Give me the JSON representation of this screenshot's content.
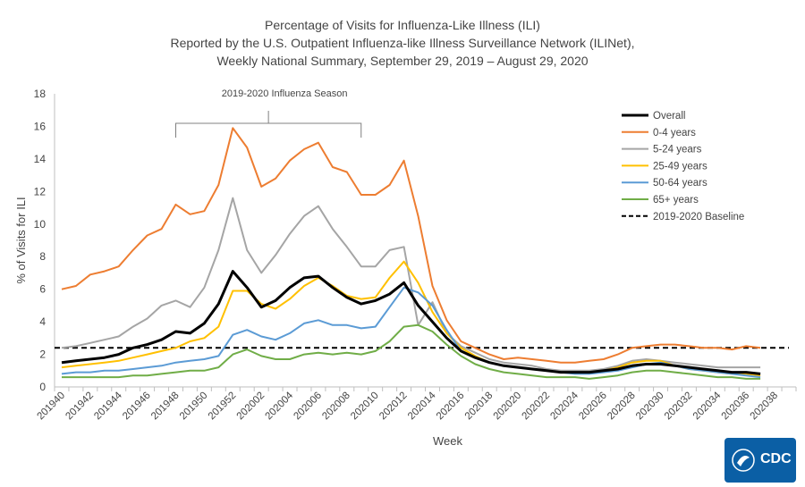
{
  "chart_data": {
    "type": "line",
    "title": [
      "Percentage of Visits for Influenza-Like Illness (ILI)",
      "Reported by the U.S. Outpatient Influenza-like Illness Surveillance Network (ILINet),",
      "Weekly National Summary, September 29, 2019 – August 29, 2020"
    ],
    "xlabel": "Week",
    "ylabel": "% of Visits for ILI",
    "ylim": [
      0,
      18
    ],
    "yticks": [
      "0",
      "2",
      "4",
      "6",
      "8",
      "10",
      "12",
      "14",
      "16",
      "18"
    ],
    "xtick_labels": [
      "201940",
      "201942",
      "201944",
      "201946",
      "201948",
      "201950",
      "201952",
      "202002",
      "202004",
      "202006",
      "202008",
      "202010",
      "202012",
      "202014",
      "202016",
      "202018",
      "202020",
      "202022",
      "202024",
      "202026",
      "202028",
      "202030",
      "202032",
      "202034",
      "202036",
      "202038"
    ],
    "annotation": "2019-2020 Influenza Season",
    "season_bracket": {
      "start": "201948",
      "end": "202009"
    },
    "legend_position": "right",
    "baseline": {
      "name": "2019-2020 Baseline",
      "value": 2.4,
      "color": "#000000"
    },
    "series": [
      {
        "name": "Overall",
        "color": "#000000",
        "values": [
          1.5,
          1.6,
          1.7,
          1.8,
          2.0,
          2.4,
          2.6,
          2.9,
          3.4,
          3.3,
          3.9,
          5.1,
          7.1,
          6.1,
          4.9,
          5.3,
          6.1,
          6.7,
          6.8,
          6.1,
          5.5,
          5.1,
          5.3,
          5.7,
          6.4,
          5.0,
          4.0,
          3.0,
          2.2,
          1.8,
          1.5,
          1.3,
          1.2,
          1.1,
          1.0,
          0.9,
          0.9,
          0.9,
          1.0,
          1.1,
          1.3,
          1.4,
          1.4,
          1.3,
          1.2,
          1.1,
          1.0,
          0.9,
          0.9,
          0.8
        ]
      },
      {
        "name": "0-4 years",
        "color": "#ed7d31",
        "values": [
          6.0,
          6.2,
          6.9,
          7.1,
          7.4,
          8.4,
          9.3,
          9.7,
          11.2,
          10.6,
          10.8,
          12.4,
          15.9,
          14.7,
          12.3,
          12.8,
          13.9,
          14.6,
          15.0,
          13.5,
          13.2,
          11.8,
          11.8,
          12.4,
          13.9,
          10.5,
          6.2,
          4.1,
          2.8,
          2.4,
          2.0,
          1.7,
          1.8,
          1.7,
          1.6,
          1.5,
          1.5,
          1.6,
          1.7,
          2.0,
          2.4,
          2.5,
          2.6,
          2.6,
          2.5,
          2.4,
          2.4,
          2.3,
          2.5,
          2.4
        ]
      },
      {
        "name": "5-24 years",
        "color": "#a5a5a5",
        "values": [
          2.4,
          2.5,
          2.7,
          2.9,
          3.1,
          3.7,
          4.2,
          5.0,
          5.3,
          4.9,
          6.1,
          8.4,
          11.6,
          8.4,
          7.0,
          8.1,
          9.4,
          10.5,
          11.1,
          9.7,
          8.6,
          7.4,
          7.4,
          8.4,
          8.6,
          3.8,
          5.2,
          3.3,
          2.5,
          2.1,
          1.7,
          1.5,
          1.4,
          1.3,
          1.1,
          1.0,
          1.0,
          1.0,
          1.1,
          1.3,
          1.6,
          1.7,
          1.6,
          1.5,
          1.4,
          1.3,
          1.2,
          1.2,
          1.2,
          1.2
        ]
      },
      {
        "name": "25-49 years",
        "color": "#ffc000",
        "values": [
          1.2,
          1.3,
          1.4,
          1.5,
          1.6,
          1.8,
          2.0,
          2.2,
          2.4,
          2.8,
          3.0,
          3.7,
          5.9,
          5.9,
          5.1,
          4.8,
          5.4,
          6.2,
          6.7,
          6.2,
          5.6,
          5.4,
          5.5,
          6.7,
          7.7,
          6.4,
          4.6,
          3.3,
          2.4,
          1.9,
          1.5,
          1.3,
          1.2,
          1.1,
          1.0,
          0.9,
          0.9,
          0.9,
          1.0,
          1.2,
          1.5,
          1.6,
          1.6,
          1.3,
          1.1,
          1.0,
          0.9,
          0.8,
          0.8,
          0.7
        ]
      },
      {
        "name": "50-64 years",
        "color": "#5b9bd5",
        "values": [
          0.8,
          0.9,
          0.9,
          1.0,
          1.0,
          1.1,
          1.2,
          1.3,
          1.5,
          1.6,
          1.7,
          1.9,
          3.2,
          3.5,
          3.1,
          2.9,
          3.3,
          3.9,
          4.1,
          3.8,
          3.8,
          3.6,
          3.7,
          4.9,
          6.1,
          5.8,
          5.0,
          3.5,
          2.2,
          1.8,
          1.5,
          1.3,
          1.2,
          1.1,
          1.0,
          0.9,
          0.8,
          0.8,
          0.9,
          1.0,
          1.2,
          1.4,
          1.5,
          1.3,
          1.1,
          1.0,
          0.9,
          0.8,
          0.7,
          0.6
        ]
      },
      {
        "name": "65+ years",
        "color": "#70ad47",
        "values": [
          0.6,
          0.6,
          0.6,
          0.6,
          0.6,
          0.7,
          0.7,
          0.8,
          0.9,
          1.0,
          1.0,
          1.2,
          2.0,
          2.3,
          1.9,
          1.7,
          1.7,
          2.0,
          2.1,
          2.0,
          2.1,
          2.0,
          2.2,
          2.8,
          3.7,
          3.8,
          3.4,
          2.6,
          1.9,
          1.4,
          1.1,
          0.9,
          0.8,
          0.7,
          0.6,
          0.6,
          0.6,
          0.5,
          0.6,
          0.7,
          0.9,
          1.0,
          1.0,
          0.9,
          0.8,
          0.7,
          0.6,
          0.6,
          0.5,
          0.5
        ]
      }
    ]
  },
  "logo": {
    "text": "CDC"
  }
}
